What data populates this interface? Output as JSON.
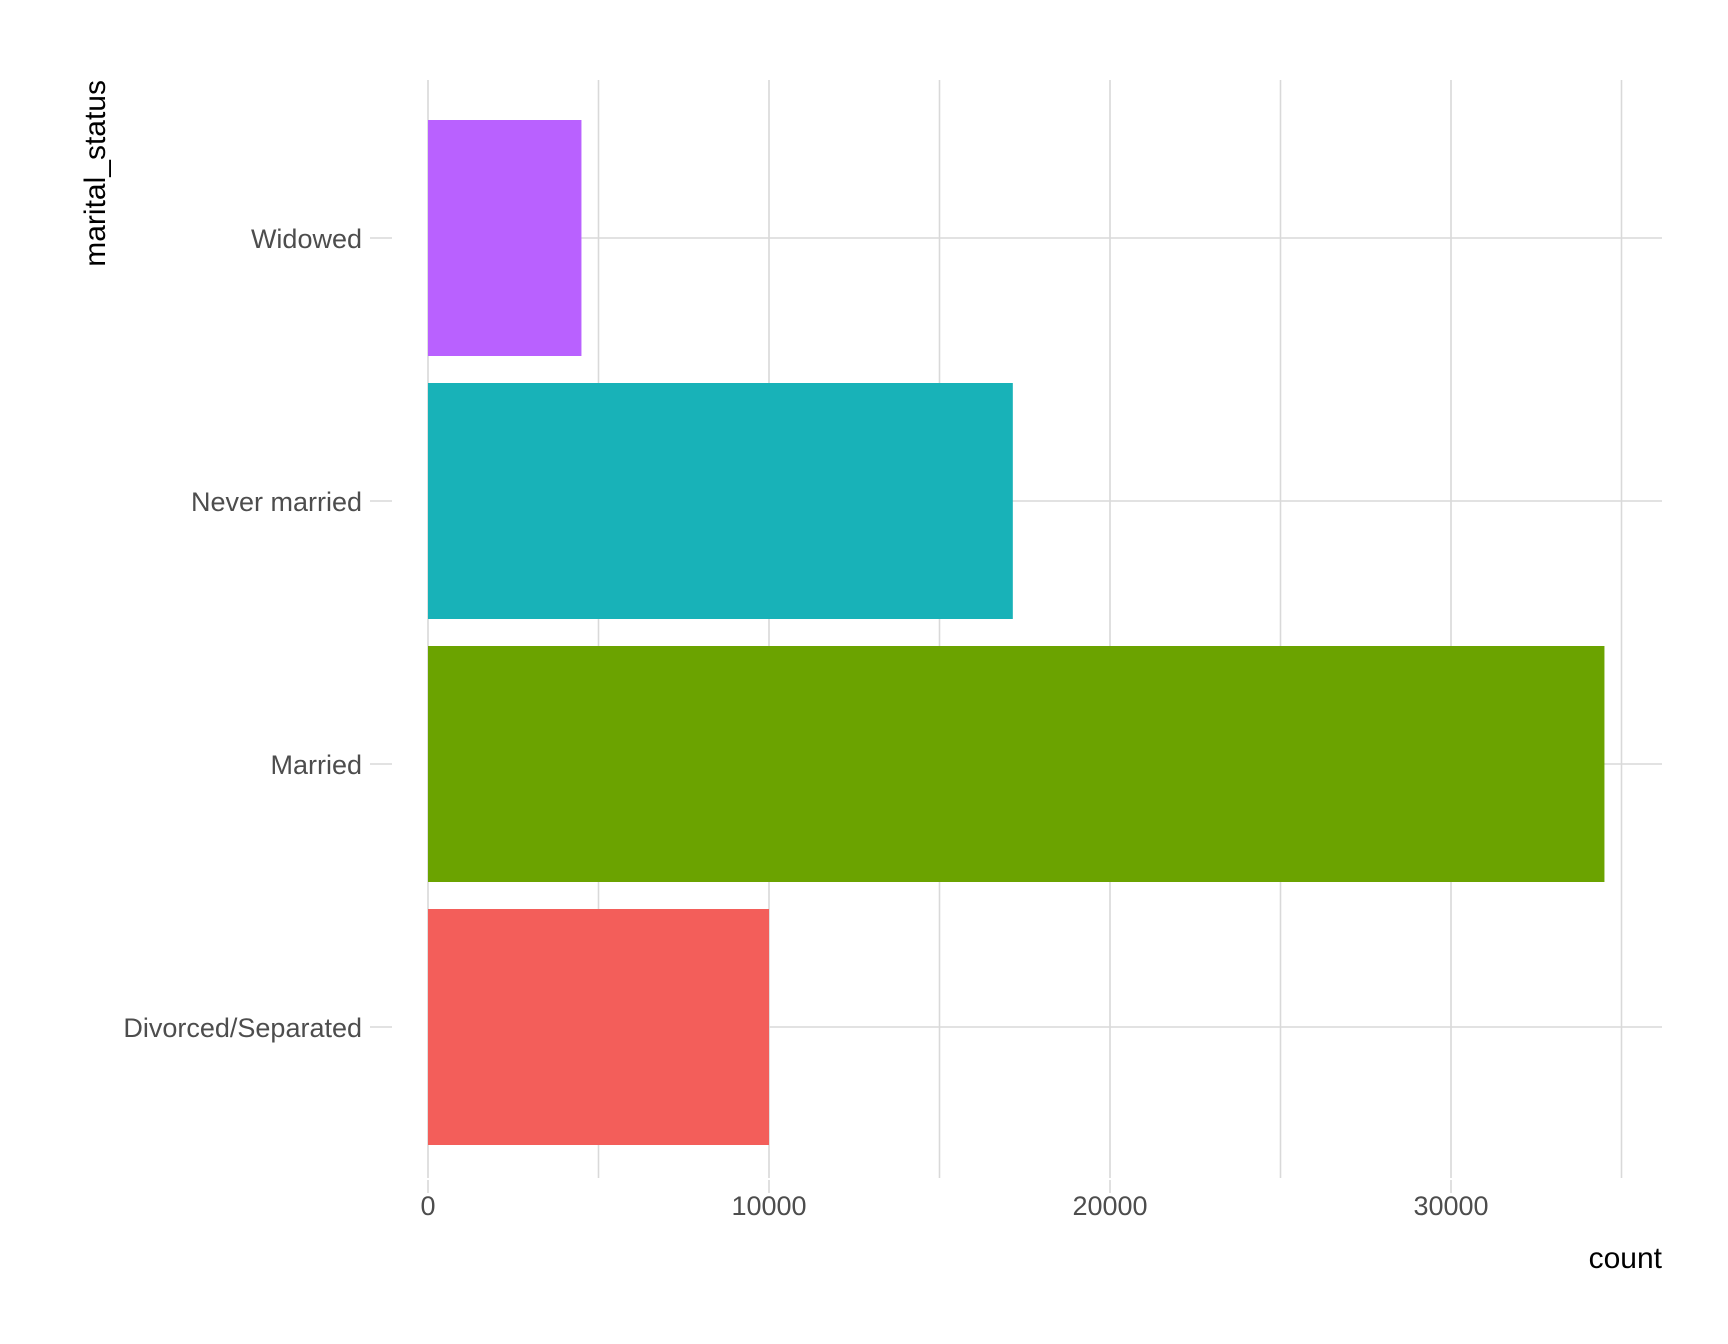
{
  "chart_data": {
    "type": "bar",
    "orientation": "horizontal",
    "categories": [
      "Divorced/Separated",
      "Married",
      "Never married",
      "Widowed"
    ],
    "values": [
      10000,
      34500,
      17150,
      4500
    ],
    "colors": [
      "#F35E5A",
      "#6BA300",
      "#18B2B8",
      "#B961FF"
    ],
    "xlabel": "count",
    "ylabel": "marital_status",
    "xlim": [
      0,
      36000
    ],
    "x_ticks": [
      0,
      10000,
      20000,
      30000
    ],
    "x_minor_ticks": [
      5000,
      15000,
      25000,
      35000
    ],
    "grid": true,
    "legend": "none"
  }
}
